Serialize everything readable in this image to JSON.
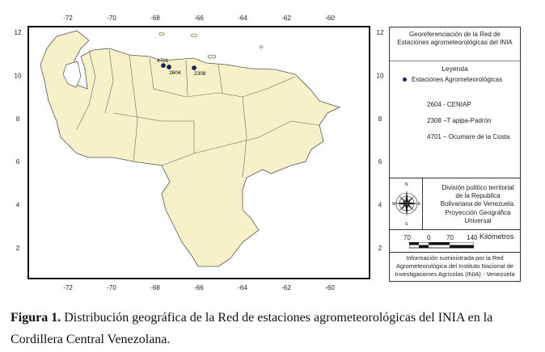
{
  "axes": {
    "lon_ticks": [
      "-72",
      "-70",
      "-68",
      "-66",
      "-64",
      "-62",
      "-60"
    ],
    "lat_ticks": [
      "12",
      "10",
      "8",
      "6",
      "4",
      "2"
    ]
  },
  "stations": [
    {
      "code": "4701",
      "lon": -67.63,
      "lat": 10.46
    },
    {
      "code": "2604",
      "lon": -67.37,
      "lat": 10.39
    },
    {
      "code": "2308",
      "lon": -66.22,
      "lat": 10.35
    }
  ],
  "legend": {
    "title": "Georeferenciación de la Red de Estaciones agrometeorológicas del INIA",
    "heading": "Leyenda",
    "symbol_label": "Estaciones Agrometeorológicas",
    "entries": [
      "2604 - CENIAP",
      "2308 –T apipa-Padrón",
      "4701 – Ocumare de la Costa"
    ],
    "division": "División político territorial de la Republica Bolivariana de Venezuela.",
    "projection": "Proyección  Geográfica Universal",
    "compass": {
      "n": "N",
      "s": "S",
      "e": "E",
      "w": "W"
    },
    "scale": {
      "labels": [
        "70",
        "0",
        "70",
        "140"
      ],
      "unit": "Kilómetros"
    },
    "source": "Información suministrada por la Red Agrometeorológica del Instituto Nacional de Investigaciones Agrícolas (INIA) - Venezuela"
  },
  "caption": {
    "bold": "Figura 1.",
    "text": " Distribución geográfica de la Red de estaciones agrometeorológicas del INIA en la Cordillera Central Venezolana."
  }
}
